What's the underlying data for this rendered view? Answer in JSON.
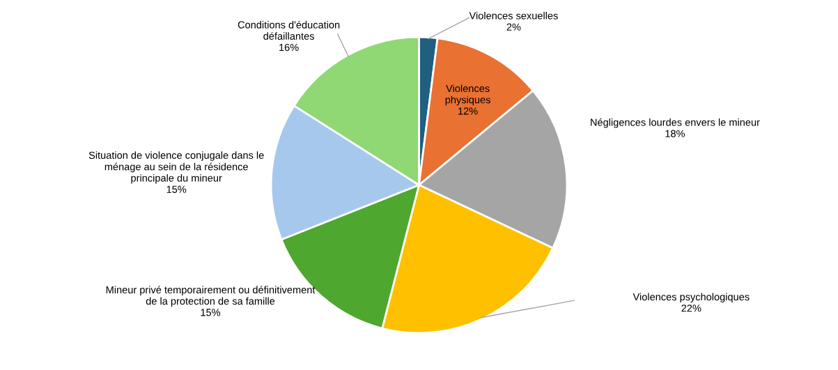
{
  "chart_data": {
    "type": "pie",
    "categories": [
      "Violences sexuelles",
      "Violences\nphysiques",
      "Négligences lourdes envers le mineur",
      "Violences psychologiques",
      "Mineur privé temporairement ou définitivement\nde la protection de sa famille",
      "Situation de violence conjugale dans le\nménage au sein de la résidence\nprincipale du mineur",
      "Conditions d'éducation\ndéfaillantes"
    ],
    "values": [
      2,
      12,
      18,
      22,
      15,
      15,
      16
    ],
    "value_labels": [
      "2%",
      "12%",
      "18%",
      "22%",
      "15%",
      "15%",
      "16%"
    ],
    "colors": [
      "#1f5f7f",
      "#e97132",
      "#a5a5a5",
      "#ffc000",
      "#4ea72e",
      "#a6c8ec",
      "#8fd873"
    ]
  }
}
